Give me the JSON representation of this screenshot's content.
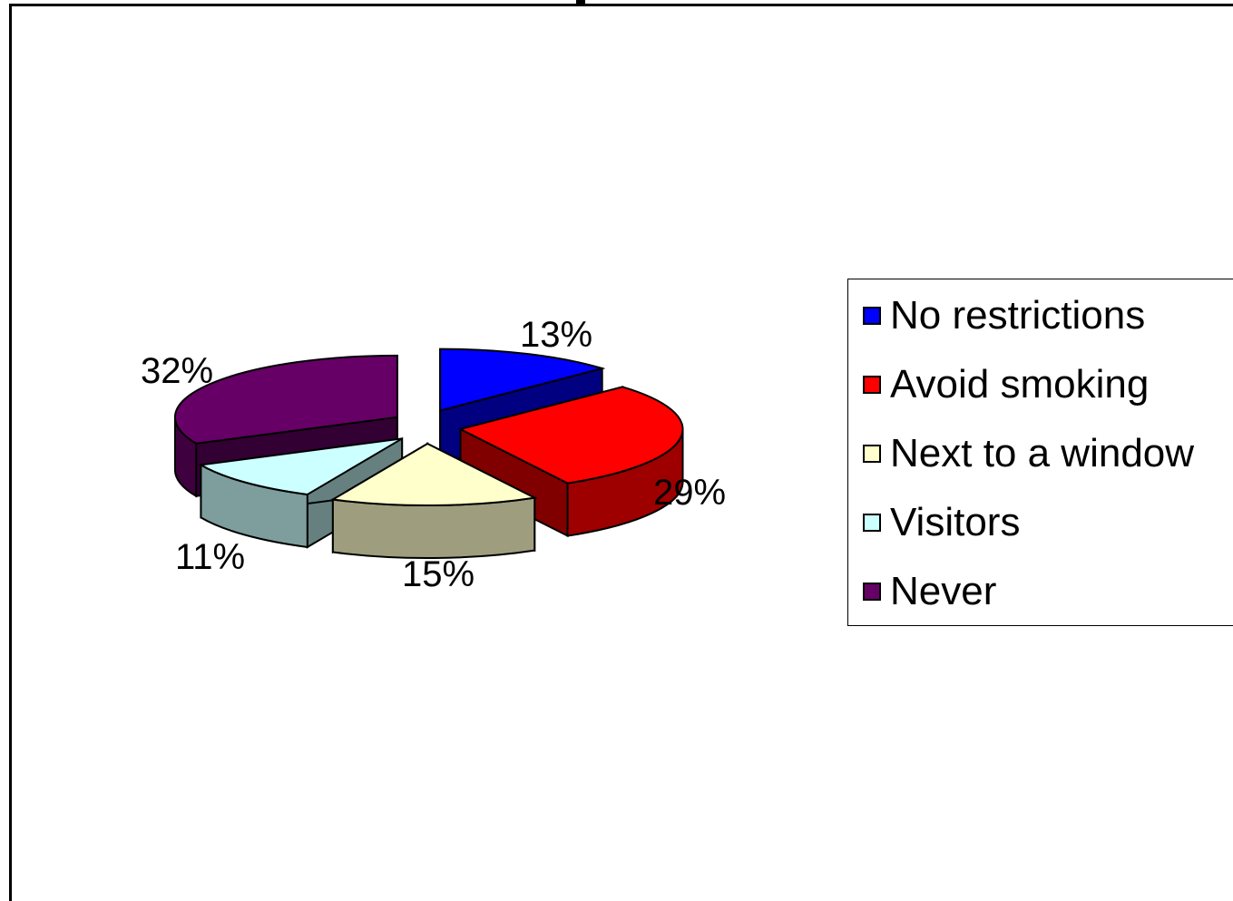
{
  "chart_data": {
    "type": "pie",
    "title": "",
    "categories": [
      "No restrictions",
      "Avoid smoking",
      "Next to a window",
      "Visitors",
      "Never"
    ],
    "values": [
      13,
      29,
      15,
      11,
      32
    ],
    "labels": [
      "13%",
      "29%",
      "15%",
      "11%",
      "32%"
    ],
    "colors": [
      "#0000FF",
      "#FF0000",
      "#FFFFCC",
      "#CCFFFF",
      "#660066"
    ],
    "style": "exploded-3d",
    "legend": "right"
  }
}
